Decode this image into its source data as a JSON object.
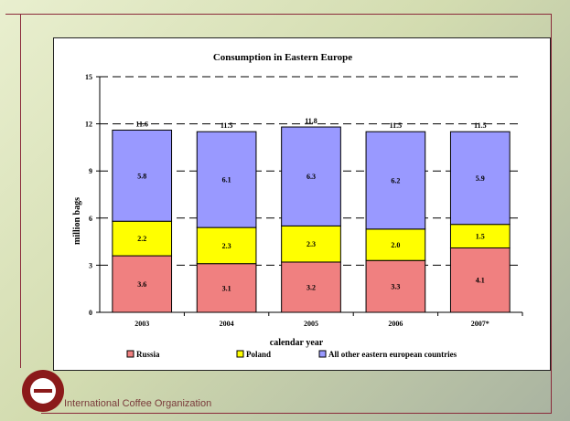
{
  "org_name": "International Coffee Organization",
  "colors": {
    "frame": "#8a2a3a",
    "russia": "#f08080",
    "poland": "#ffff00",
    "others": "#9999ff"
  },
  "chart_data": {
    "type": "bar",
    "stacked": true,
    "title": "Consumption in Eastern Europe",
    "xlabel": "calendar year",
    "ylabel": "million bags",
    "ylim": [
      0,
      15
    ],
    "yticks": [
      "0",
      "3",
      "6",
      "9",
      "12",
      "15"
    ],
    "grid": "dashed horizontal",
    "legend_position": "bottom",
    "categories": [
      "2003",
      "2004",
      "2005",
      "2006",
      "2007*"
    ],
    "series": [
      {
        "name": "Russia",
        "values": [
          3.6,
          3.1,
          3.2,
          3.3,
          4.1
        ],
        "labels": [
          "3.6",
          "3.1",
          "3.2",
          "3.3",
          "4.1"
        ],
        "color": "#f08080"
      },
      {
        "name": "Poland",
        "values": [
          2.2,
          2.3,
          2.3,
          2.0,
          1.5
        ],
        "labels": [
          "2.2",
          "2.3",
          "2.3",
          "2.0",
          "1.5"
        ],
        "color": "#ffff00"
      },
      {
        "name": "All other eastern european countries",
        "values": [
          5.8,
          6.1,
          6.3,
          6.2,
          5.9
        ],
        "labels": [
          "5.8",
          "6.1",
          "6.3",
          "6.2",
          "5.9"
        ],
        "color": "#9999ff"
      }
    ],
    "totals": [
      11.6,
      11.5,
      11.8,
      11.5,
      11.5
    ],
    "total_labels": [
      "11.6",
      "11.5",
      "11.8",
      "11.5",
      "11.5"
    ]
  }
}
